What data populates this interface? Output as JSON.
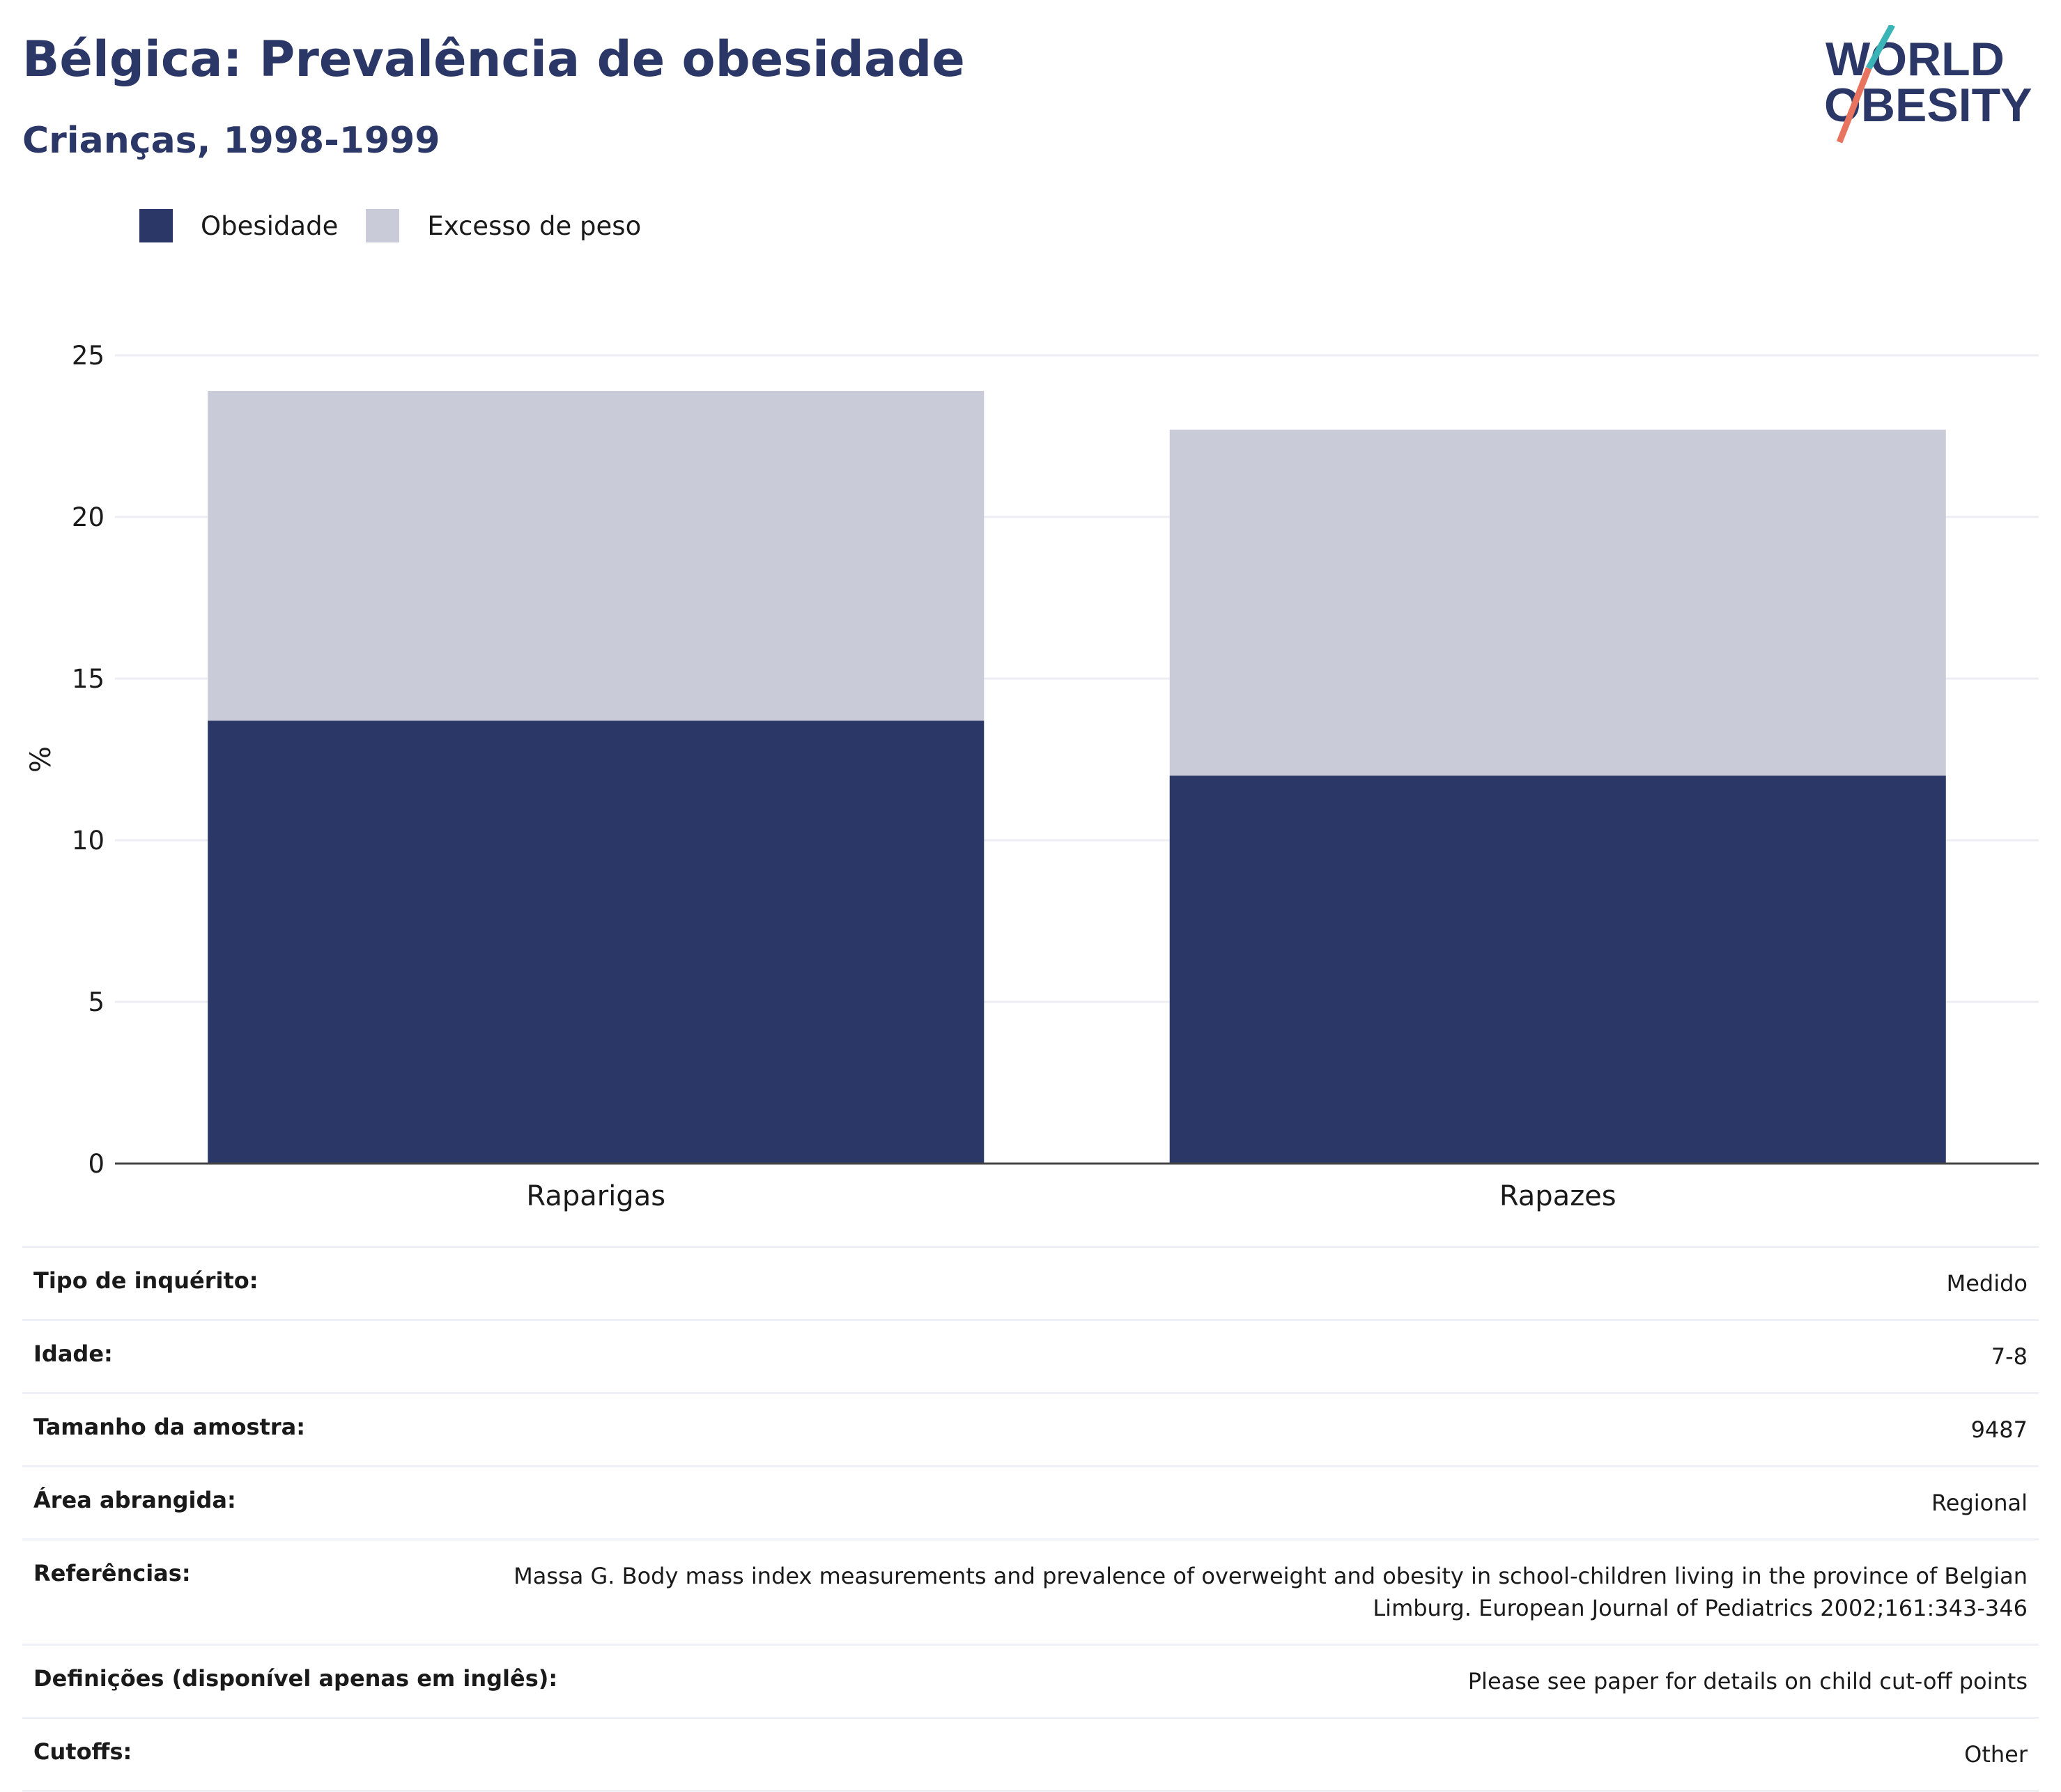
{
  "header": {
    "title": "Bélgica: Prevalência de obesidade",
    "subtitle": "Crianças, 1998-1999"
  },
  "logo": {
    "line1": "WORLD",
    "line2": "OBESITY"
  },
  "colors": {
    "obesity": "#2b3766",
    "overweight": "#c9ccd8",
    "title": "#2b3766",
    "logo_teal": "#3ab4b6",
    "logo_coral": "#e8735e"
  },
  "chart_data": {
    "type": "bar",
    "stacked": true,
    "categories": [
      "Raparigas",
      "Rapazes"
    ],
    "series": [
      {
        "name": "Obesidade",
        "values": [
          13.7,
          12.0
        ]
      },
      {
        "name": "Excesso de peso",
        "values": [
          10.2,
          10.7
        ]
      }
    ],
    "ylabel": "%",
    "ylim": [
      0,
      25
    ],
    "yticks": [
      0,
      5,
      10,
      15,
      20,
      25
    ],
    "grid": true,
    "legend_position": "top-left"
  },
  "metadata": [
    {
      "key": "Tipo de inquérito:",
      "value": "Medido"
    },
    {
      "key": "Idade:",
      "value": "7-8"
    },
    {
      "key": "Tamanho da amostra:",
      "value": "9487"
    },
    {
      "key": "Área abrangida:",
      "value": "Regional"
    },
    {
      "key": "Referências:",
      "value": "Massa G. Body mass index measurements and prevalence of overweight and obesity in school-children living in the province of Belgian Limburg. European Journal of Pediatrics 2002;161:343-346"
    },
    {
      "key": "Definições (disponível apenas em inglês):",
      "value": "Please see paper for details on child cut-off points"
    },
    {
      "key": "Cutoffs:",
      "value": "Other"
    }
  ]
}
